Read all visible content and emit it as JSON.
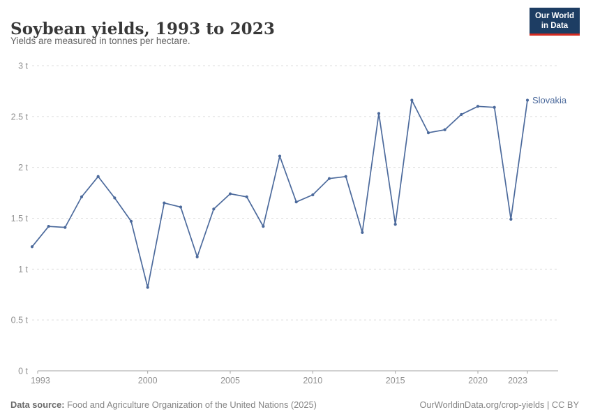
{
  "header": {
    "title": "Soybean yields, 1993 to 2023",
    "subtitle": "Yields are measured in tonnes per hectare.",
    "logo": {
      "line1": "Our World",
      "line2": "in Data"
    }
  },
  "chart_data": {
    "type": "line",
    "title": "Soybean yields, 1993 to 2023",
    "subtitle": "Yields are measured in tonnes per hectare.",
    "unit": "tonnes per hectare",
    "x": [
      1993,
      1994,
      1995,
      1996,
      1997,
      1998,
      1999,
      2000,
      2001,
      2002,
      2003,
      2004,
      2005,
      2006,
      2007,
      2008,
      2009,
      2010,
      2011,
      2012,
      2013,
      2014,
      2015,
      2016,
      2017,
      2018,
      2019,
      2020,
      2021,
      2022,
      2023
    ],
    "series": [
      {
        "name": "Slovakia",
        "color": "#4C6A9C",
        "values": [
          1.22,
          1.42,
          1.41,
          1.71,
          1.91,
          1.7,
          1.47,
          0.82,
          1.65,
          1.61,
          1.12,
          1.59,
          1.74,
          1.71,
          1.42,
          2.11,
          1.66,
          1.73,
          1.89,
          1.91,
          1.36,
          2.53,
          1.44,
          2.66,
          2.34,
          2.37,
          2.52,
          2.6,
          2.59,
          1.49,
          2.66
        ]
      }
    ],
    "xlabel": "",
    "ylabel": "tonnes per hectare",
    "ylim": [
      0,
      3
    ],
    "y_tick_values": [
      0,
      0.5,
      1,
      1.5,
      2,
      2.5,
      3
    ],
    "y_tick_labels": [
      "0 t",
      "0.5 t",
      "1 t",
      "1.5 t",
      "2 t",
      "2.5 t",
      "3 t"
    ],
    "x_tick_values": [
      1993,
      2000,
      2005,
      2010,
      2015,
      2020,
      2023
    ],
    "grid": true,
    "legend_position": "end-of-line",
    "colors": {
      "line": "#4C6A9C",
      "gridline": "#dcdcdc",
      "axis": "#a3a3a3",
      "tick_label": "#8f8f8f"
    }
  },
  "footer": {
    "source_label": "Data source:",
    "source_text": " Food and Agriculture Organization of the United Nations (2025)",
    "credit": "OurWorldinData.org/crop-yields | CC BY"
  }
}
